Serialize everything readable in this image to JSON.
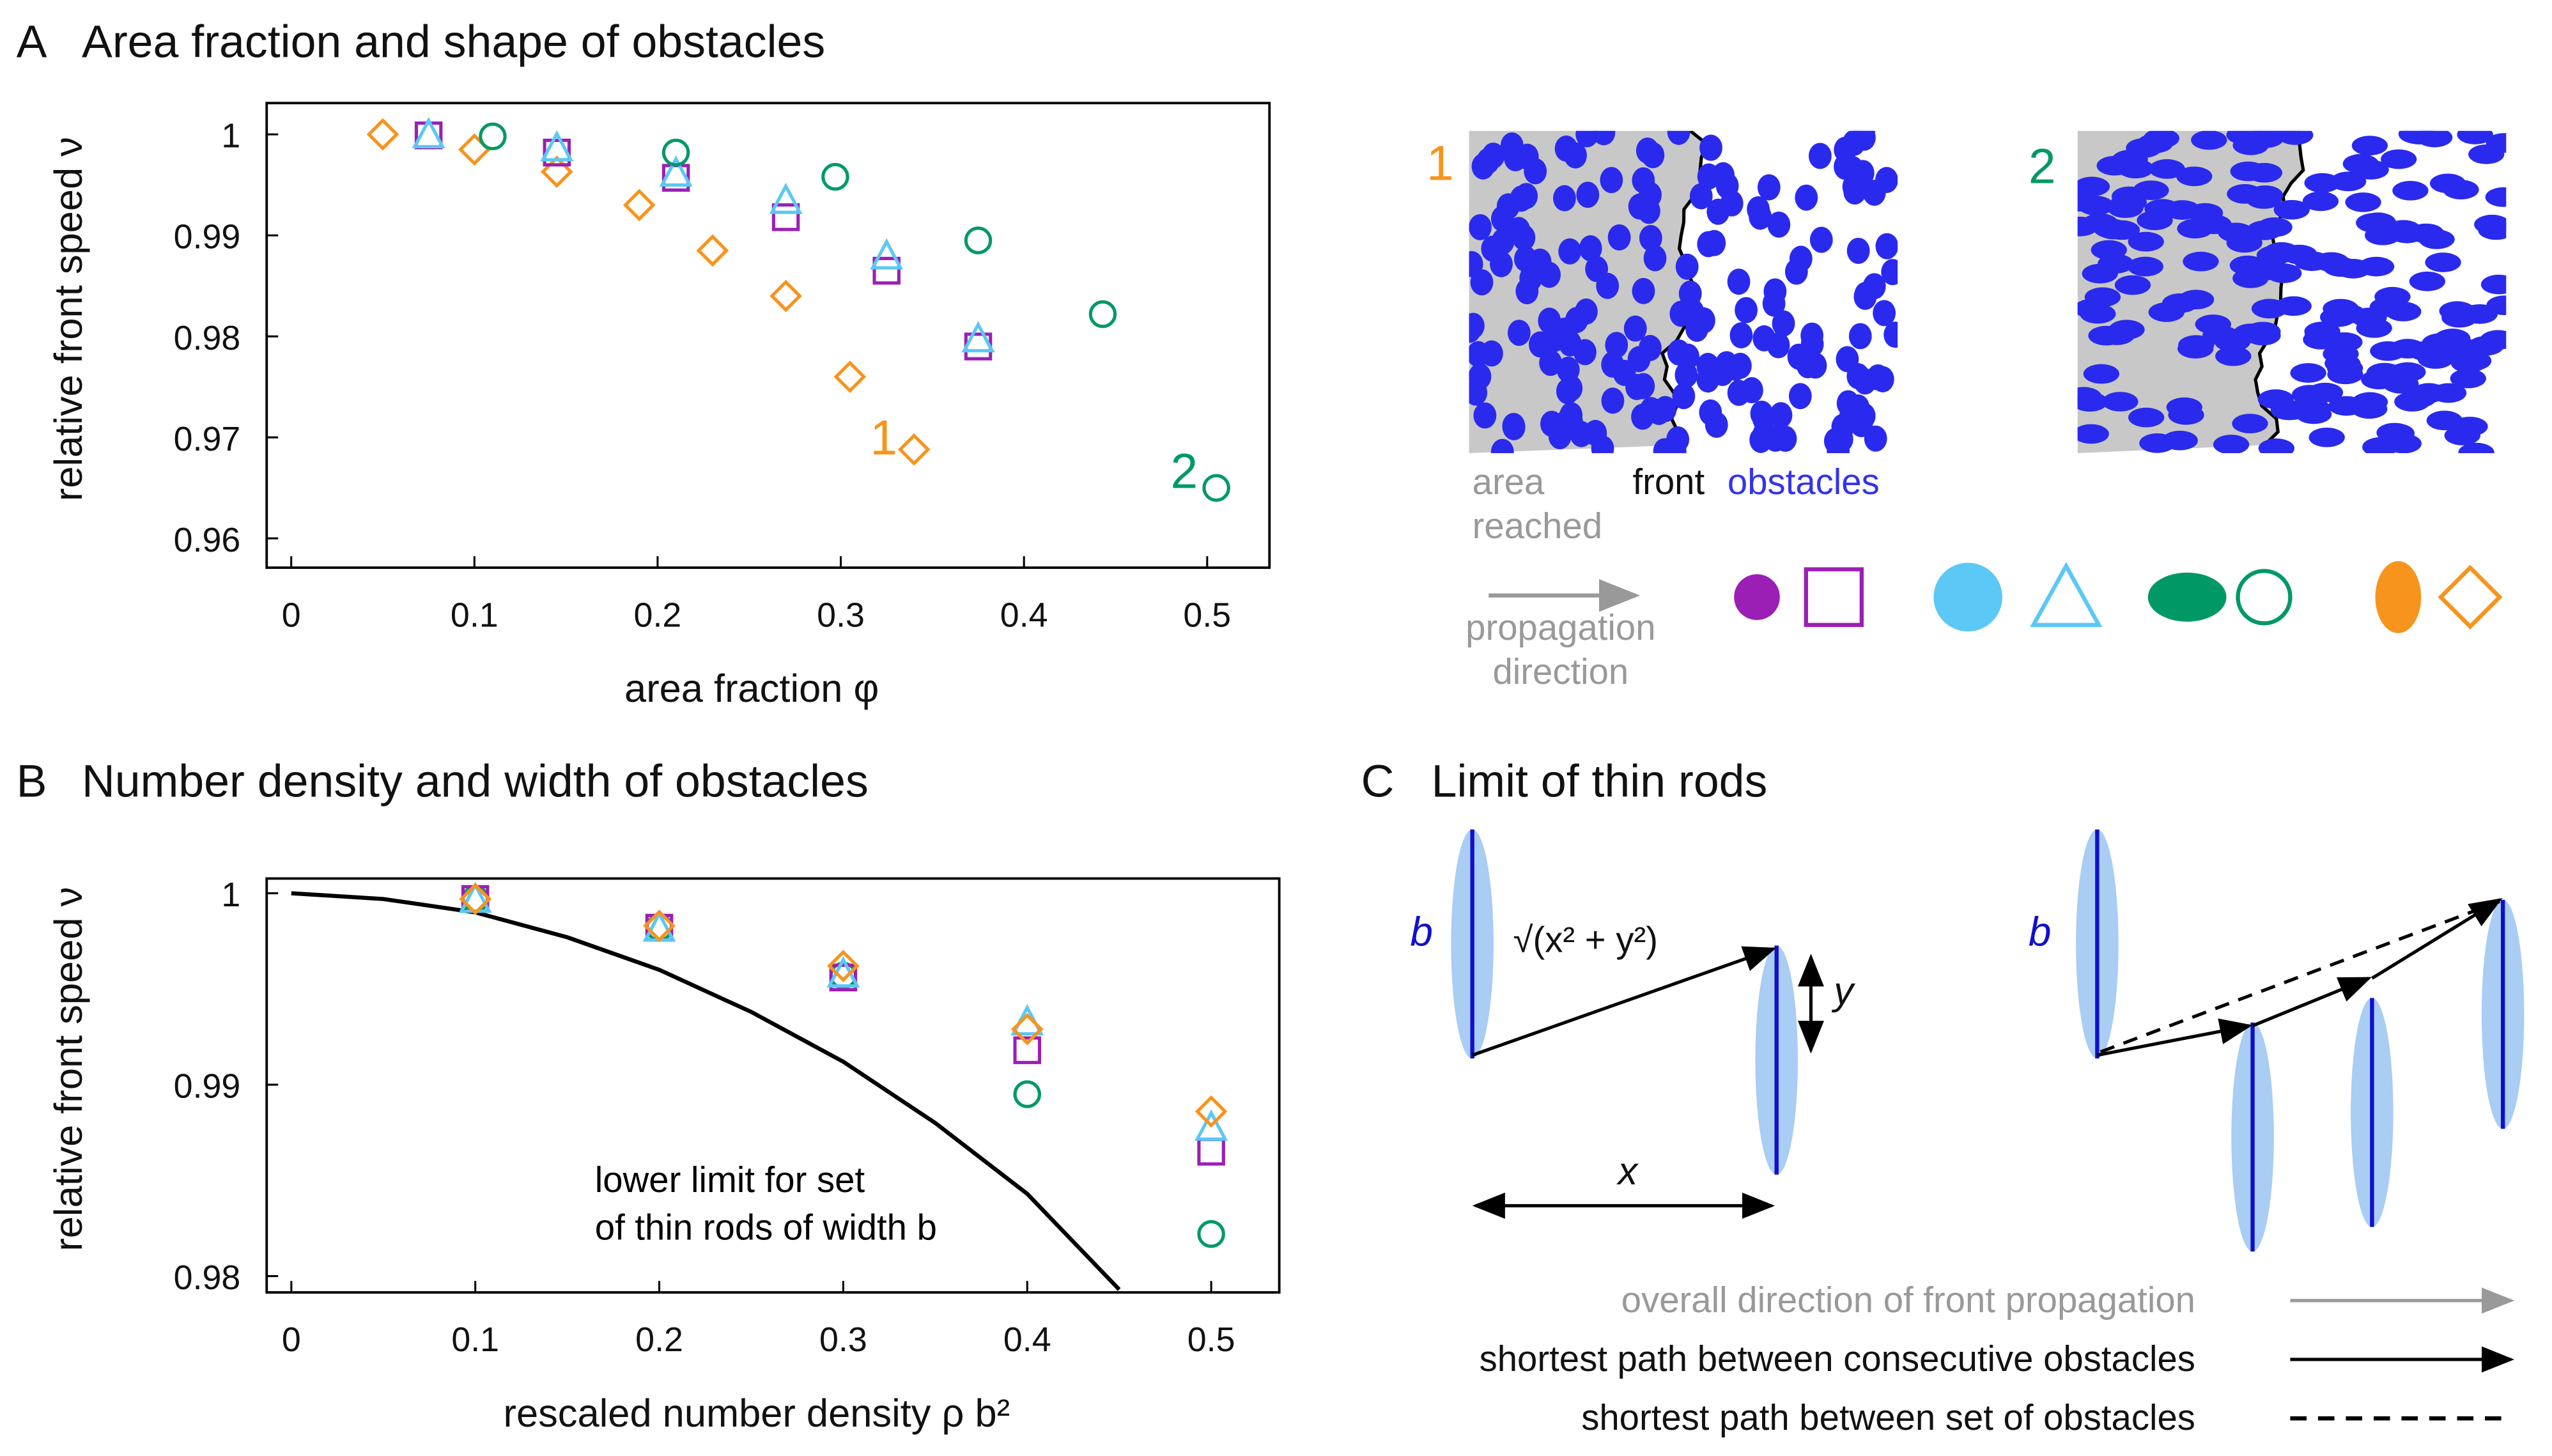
{
  "chart_data": [
    {
      "type": "scatter",
      "panel": "A",
      "title": "Area fraction and shape of obstacles",
      "xlabel": "area fraction  φ",
      "ylabel": "relative front speed  ν",
      "xlim": [
        -0.0134,
        0.534
      ],
      "ylim": [
        0.9571,
        1.0031
      ],
      "xticks": [
        0,
        0.1,
        0.2,
        0.3,
        0.4,
        0.5
      ],
      "yticks": [
        0.96,
        0.97,
        0.98,
        0.99,
        1
      ],
      "series": [
        {
          "marker": "diamond",
          "color": "#f7941d",
          "x": [
            0.05,
            0.1,
            0.145,
            0.19,
            0.23,
            0.27,
            0.305,
            0.34
          ],
          "values": [
            1.0,
            0.9985,
            0.9963,
            0.993,
            0.9885,
            0.984,
            0.976,
            0.9688
          ]
        },
        {
          "marker": "square",
          "color": "#9b1fb5",
          "x": [
            0.075,
            0.145,
            0.21,
            0.27,
            0.325,
            0.375
          ],
          "values": [
            0.9999,
            0.9982,
            0.9957,
            0.9918,
            0.9865,
            0.979
          ]
        },
        {
          "marker": "triangle",
          "color": "#5bc8f5",
          "x": [
            0.075,
            0.145,
            0.21,
            0.27,
            0.325,
            0.375
          ],
          "values": [
            1.0,
            0.9987,
            0.9962,
            0.9935,
            0.988,
            0.9798
          ]
        },
        {
          "marker": "circle",
          "color": "#009966",
          "x": [
            0.11,
            0.21,
            0.297,
            0.375,
            0.443,
            0.505
          ],
          "values": [
            0.9998,
            0.9982,
            0.9958,
            0.9895,
            0.9822,
            0.965
          ]
        }
      ],
      "annotations": [
        {
          "text": "1",
          "x": 0.316,
          "y": 0.9683,
          "color": "#f7941d"
        },
        {
          "text": "2",
          "x": 0.48,
          "y": 0.965,
          "color": "#009966"
        }
      ]
    },
    {
      "type": "scatter",
      "panel": "B",
      "title": "Number density and width of obstacles",
      "xlabel": "rescaled number density  ρ b²",
      "ylabel": "relative front speed  ν",
      "xlim": [
        -0.0134,
        0.537
      ],
      "ylim": [
        0.97915,
        1.00077
      ],
      "xticks": [
        0,
        0.1,
        0.2,
        0.3,
        0.4,
        0.5
      ],
      "yticks": [
        0.98,
        0.99,
        1
      ],
      "series": [
        {
          "type": "line",
          "color": "#000000",
          "x": [
            0,
            0.05,
            0.1,
            0.15,
            0.2,
            0.25,
            0.3,
            0.35,
            0.4,
            0.45
          ],
          "values": [
            1,
            0.9997,
            0.999,
            0.9977,
            0.996,
            0.9938,
            0.9912,
            0.988,
            0.9843,
            0.9793
          ]
        },
        {
          "marker": "circle",
          "color": "#009966",
          "x": [
            0.1,
            0.2,
            0.3,
            0.4,
            0.5
          ],
          "values": [
            0.9997,
            0.9982,
            0.9957,
            0.9895,
            0.9822
          ]
        },
        {
          "marker": "square",
          "color": "#9b1fb5",
          "x": [
            0.1,
            0.2,
            0.3,
            0.4,
            0.5
          ],
          "values": [
            0.9997,
            0.9982,
            0.9956,
            0.9918,
            0.9865
          ]
        },
        {
          "marker": "triangle",
          "color": "#5bc8f5",
          "x": [
            0.1,
            0.2,
            0.3,
            0.4,
            0.5
          ],
          "values": [
            0.9997,
            0.9982,
            0.9958,
            0.9933,
            0.9878
          ]
        },
        {
          "marker": "diamond",
          "color": "#f7941d",
          "x": [
            0.1,
            0.2,
            0.3,
            0.4,
            0.5
          ],
          "values": [
            0.9997,
            0.9983,
            0.9962,
            0.9929,
            0.9886
          ]
        }
      ],
      "annotations": [
        {
          "text": "lower limit for set",
          "x": 0.165,
          "y": 0.9844,
          "color": "#000000"
        },
        {
          "text": "of thin rods of width b",
          "x": 0.165,
          "y": 0.9819,
          "color": "#000000"
        }
      ]
    }
  ],
  "diagram": {
    "samples": {
      "label1": "1",
      "label2": "2",
      "area": "area",
      "reached": "reached",
      "front": "front",
      "obstacles": "obstacles",
      "propagation": "propagation",
      "direction": "direction"
    },
    "panelC": {
      "panel": "C",
      "title": "Limit of thin rods",
      "b_left": "b",
      "distance": "√(x² + y²)",
      "y": "y",
      "x": "x",
      "b_right": "b",
      "legend": [
        "overall direction of front propagation",
        "shortest path between consecutive obstacles",
        "shortest path between set of obstacles"
      ]
    }
  }
}
